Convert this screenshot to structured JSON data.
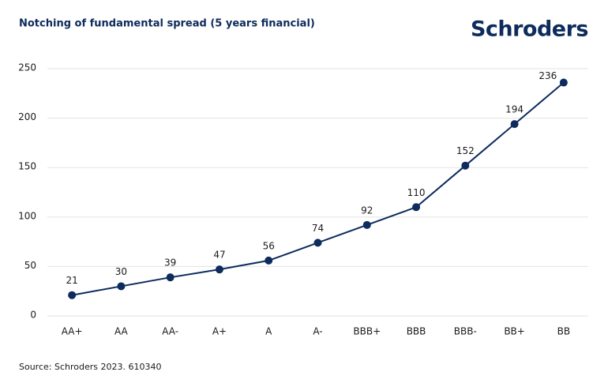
{
  "chart_data": {
    "type": "line",
    "title": "Notching of fundamental spread (5 years financial)",
    "logo": "Schroders",
    "source": "Source: Schroders 2023. 610340",
    "categories": [
      "AA+",
      "AA",
      "AA-",
      "A+",
      "A",
      "A-",
      "BBB+",
      "BBB",
      "BBB-",
      "BB+",
      "BB"
    ],
    "values": [
      21,
      30,
      39,
      47,
      56,
      74,
      92,
      110,
      152,
      194,
      236
    ],
    "color": "#0d2b5c",
    "ylim": [
      0,
      250
    ],
    "yticks": [
      0,
      50,
      100,
      150,
      200,
      250
    ],
    "grid": true
  }
}
